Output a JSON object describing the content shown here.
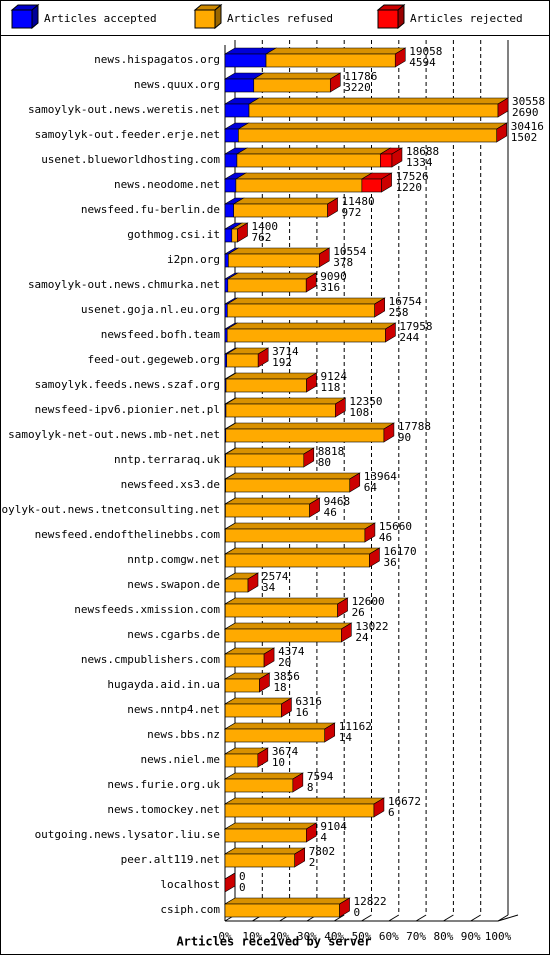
{
  "chart_data": {
    "type": "bar",
    "orientation": "horizontal",
    "stacked": true,
    "xlabel": "Articles received by server",
    "categories": [
      "news.hispagatos.org",
      "news.quux.org",
      "samoylyk-out.news.weretis.net",
      "samoylyk-out.feeder.erje.net",
      "usenet.blueworldhosting.com",
      "news.neodome.net",
      "newsfeed.fu-berlin.de",
      "gothmog.csi.it",
      "i2pn.org",
      "samoylyk-out.news.chmurka.net",
      "usenet.goja.nl.eu.org",
      "newsfeed.bofh.team",
      "feed-out.gegeweb.org",
      "samoylyk.feeds.news.szaf.org",
      "newsfeed-ipv6.pionier.net.pl",
      "samoylyk-net-out.news.mb-net.net",
      "nntp.terraraq.uk",
      "newsfeed.xs3.de",
      "samoylyk-out.news.tnetconsulting.net",
      "newsfeed.endofthelinebbs.com",
      "nntp.comgw.net",
      "news.swapon.de",
      "newsfeeds.xmission.com",
      "news.cgarbs.de",
      "news.cmpublishers.com",
      "hugayda.aid.in.ua",
      "news.nntp4.net",
      "news.bbs.nz",
      "news.niel.me",
      "news.furie.org.uk",
      "news.tomockey.net",
      "outgoing.news.lysator.liu.se",
      "peer.alt119.net",
      "localhost",
      "csiph.com"
    ],
    "offered": [
      19058,
      11786,
      30558,
      30416,
      18688,
      17526,
      11480,
      1400,
      10554,
      9090,
      16754,
      17958,
      3714,
      9124,
      12350,
      17788,
      8818,
      13964,
      9468,
      15660,
      16170,
      2574,
      12600,
      13022,
      4374,
      3856,
      6316,
      11162,
      3674,
      7594,
      16672,
      9104,
      7802,
      0,
      12822
    ],
    "series": [
      {
        "name": "Articles accepted",
        "color": "#0000ff",
        "values": [
          4594,
          3220,
          2690,
          1502,
          1334,
          1220,
          972,
          762,
          378,
          316,
          258,
          244,
          192,
          118,
          108,
          90,
          80,
          64,
          46,
          46,
          36,
          34,
          26,
          24,
          20,
          18,
          16,
          14,
          10,
          8,
          6,
          4,
          2,
          0,
          0
        ]
      },
      {
        "name": "Articles refused",
        "color": "#ffaa00",
        "values": [
          14464,
          8566,
          27868,
          28914,
          16054,
          14100,
          10508,
          638,
          10176,
          8774,
          16496,
          17714,
          3522,
          9006,
          12242,
          17698,
          8738,
          13900,
          9422,
          15614,
          16134,
          2540,
          12574,
          12998,
          4354,
          3838,
          6300,
          11148,
          3664,
          7586,
          16666,
          9100,
          7800,
          0,
          12822
        ]
      },
      {
        "name": "Articles rejected",
        "color": "#ff0000",
        "values": [
          0,
          0,
          0,
          0,
          1300,
          2206,
          0,
          0,
          0,
          0,
          0,
          0,
          0,
          0,
          0,
          0,
          0,
          0,
          0,
          0,
          0,
          0,
          0,
          0,
          0,
          0,
          0,
          0,
          0,
          0,
          0,
          0,
          0,
          0,
          0
        ]
      }
    ],
    "xlim": [
      0,
      30558
    ],
    "xticks": [
      {
        "value": 0,
        "label": "0%"
      },
      {
        "value": 3055.8,
        "label": "10%"
      },
      {
        "value": 6111.6,
        "label": "20%"
      },
      {
        "value": 9167.4,
        "label": "30%"
      },
      {
        "value": 12223.2,
        "label": "40%"
      },
      {
        "value": 15279,
        "label": "50%"
      },
      {
        "value": 18334.8,
        "label": "60%"
      },
      {
        "value": 21390.6,
        "label": "70%"
      },
      {
        "value": 24446.4,
        "label": "80%"
      },
      {
        "value": 27502.2,
        "label": "90%"
      },
      {
        "value": 30558,
        "label": "100%"
      }
    ],
    "grid": true,
    "legend": "top"
  }
}
